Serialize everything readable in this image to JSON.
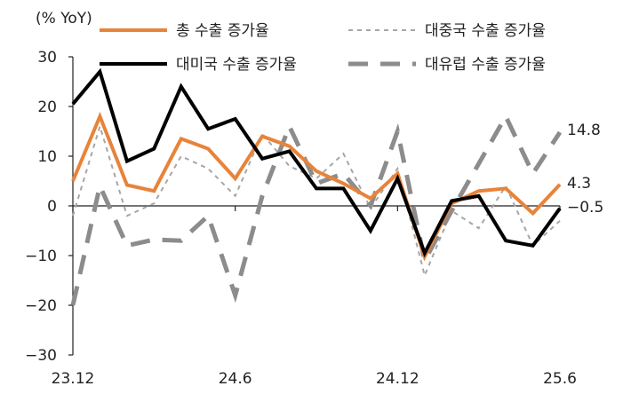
{
  "chart_data": {
    "type": "line",
    "unit_label": "(% YoY)",
    "x_tick_labels": [
      "23.12",
      "24.6",
      "24.12",
      "25.6"
    ],
    "x": [
      "23.12",
      "24.1",
      "24.2",
      "24.3",
      "24.4",
      "24.5",
      "24.6",
      "24.7",
      "24.8",
      "24.9",
      "24.10",
      "24.11",
      "24.12",
      "25.1",
      "25.2",
      "25.3",
      "25.4",
      "25.5",
      "25.6"
    ],
    "ylim": [
      -30,
      30
    ],
    "y_ticks": [
      30,
      20,
      10,
      0,
      -10,
      -20,
      -30
    ],
    "y_tick_labels": [
      "30",
      "20",
      "10",
      "0",
      "−10",
      "−20",
      "−30"
    ],
    "grid": false,
    "legend_position": "top",
    "series": [
      {
        "name": "총 수출 증가율",
        "color": "#E8833A",
        "style": "solid-thick",
        "values": [
          5.0,
          18.0,
          4.2,
          3.0,
          13.5,
          11.5,
          5.5,
          14.0,
          12.0,
          7.0,
          4.5,
          1.5,
          6.5,
          -10.2,
          0.5,
          3.0,
          3.5,
          -1.5,
          4.3
        ]
      },
      {
        "name": "대중국 수출 증가율",
        "color": "#A6A6A6",
        "style": "dotted-thin",
        "values": [
          -2.0,
          16.0,
          -2.0,
          0.5,
          10.0,
          7.5,
          2.0,
          14.5,
          8.0,
          5.5,
          10.5,
          -0.5,
          7.5,
          -14.0,
          -1.0,
          -4.5,
          4.0,
          -8.0,
          -3.0
        ]
      },
      {
        "name": "대미국 수출 증가율",
        "color": "#000000",
        "style": "solid-thick",
        "values": [
          20.5,
          27.0,
          9.0,
          11.5,
          24.0,
          15.5,
          17.5,
          9.5,
          11.0,
          3.5,
          3.5,
          -5.0,
          5.5,
          -9.5,
          1.0,
          2.0,
          -7.0,
          -8.0,
          -0.5
        ]
      },
      {
        "name": "대유럽 수출 증가율",
        "color": "#8C8C8C",
        "style": "dashed-thick",
        "values": [
          -20.0,
          4.0,
          -8.0,
          -6.8,
          -7.0,
          -2.0,
          -18.0,
          2.0,
          16.0,
          4.5,
          6.5,
          0.0,
          15.0,
          -11.0,
          -1.0,
          8.5,
          18.0,
          6.5,
          14.8
        ]
      }
    ],
    "end_labels": [
      "14.8",
      "4.3",
      "−0.5"
    ]
  }
}
